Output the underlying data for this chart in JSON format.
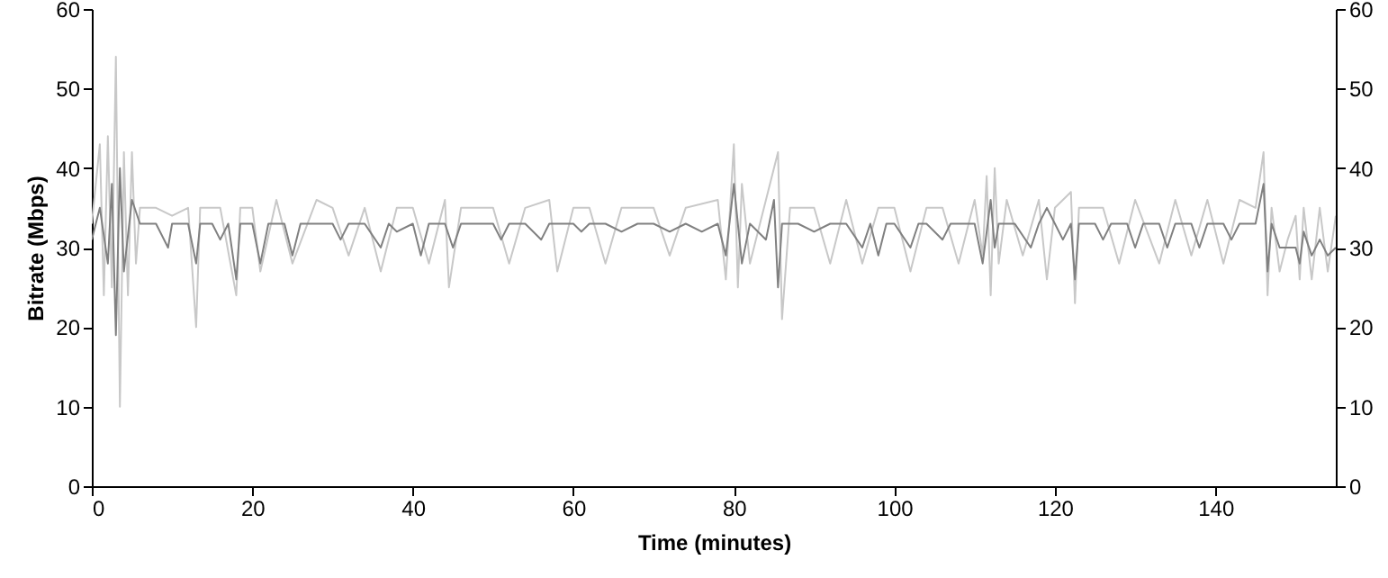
{
  "chart_data": {
    "type": "line",
    "xlabel": "Time (minutes)",
    "ylabel": "Bitrate (Mbps)",
    "xlim": [
      0,
      155
    ],
    "xticks": [
      0,
      20,
      40,
      60,
      80,
      100,
      120,
      140
    ],
    "ylim": [
      0,
      60
    ],
    "yticks": [
      0,
      10,
      20,
      30,
      40,
      50,
      60
    ],
    "y2lim": [
      0,
      60
    ],
    "y2ticks": [
      0,
      10,
      20,
      30,
      40,
      50,
      60
    ],
    "grid": false,
    "series": [
      {
        "color": "#c8c8c8",
        "x": [
          0,
          1,
          1.5,
          2,
          2.5,
          3,
          3.5,
          4,
          4.5,
          5,
          5.5,
          6,
          8,
          10,
          12,
          13,
          13.5,
          16,
          18,
          18.5,
          20,
          21,
          23,
          25,
          28,
          30,
          32,
          34,
          36,
          38,
          40,
          42,
          44,
          44.5,
          46,
          50,
          52,
          54,
          57,
          58,
          60,
          62,
          64,
          66,
          70,
          72,
          74,
          78,
          79,
          80,
          80.5,
          81,
          82,
          84,
          85.5,
          86,
          87,
          90,
          92,
          94,
          96,
          98,
          100,
          102,
          104,
          106,
          108,
          110,
          111,
          111.5,
          112,
          112.5,
          113,
          114,
          116,
          118,
          119,
          120,
          122,
          122.5,
          123,
          126,
          128,
          130,
          133,
          135,
          137,
          139,
          141,
          143,
          145,
          146,
          146.5,
          147,
          148,
          149,
          150,
          150.5,
          151,
          152,
          153,
          154,
          155
        ],
        "values": [
          33,
          43,
          24,
          44,
          25,
          54,
          10,
          42,
          24,
          42,
          28,
          35,
          35,
          34,
          35,
          20,
          35,
          35,
          24,
          35,
          35,
          27,
          36,
          28,
          36,
          35,
          29,
          35,
          27,
          35,
          35,
          28,
          36,
          25,
          35,
          35,
          28,
          35,
          36,
          27,
          35,
          35,
          28,
          35,
          35,
          29,
          35,
          36,
          26,
          43,
          25,
          38,
          28,
          36,
          42,
          21,
          35,
          35,
          28,
          36,
          28,
          35,
          35,
          27,
          35,
          35,
          28,
          36,
          29,
          39,
          24,
          40,
          28,
          36,
          29,
          36,
          26,
          35,
          37,
          23,
          35,
          35,
          28,
          36,
          28,
          36,
          29,
          36,
          28,
          36,
          35,
          42,
          24,
          35,
          27,
          31,
          34,
          26,
          35,
          26,
          35,
          27,
          34
        ]
      },
      {
        "color": "#808080",
        "x": [
          0,
          1,
          2,
          2.5,
          3,
          3.5,
          4,
          5,
          6,
          8,
          9.5,
          10,
          12,
          13,
          13.5,
          15,
          16,
          17,
          18,
          18.5,
          20,
          21,
          22,
          24,
          25,
          26,
          28,
          30,
          31,
          32,
          34,
          36,
          37,
          38,
          40,
          41,
          42,
          44,
          45,
          46,
          48,
          50,
          51,
          52,
          54,
          56,
          57,
          60,
          61,
          62,
          64,
          66,
          68,
          70,
          72,
          74,
          76,
          78,
          79,
          80,
          81,
          82,
          84,
          85,
          85.5,
          86,
          88,
          90,
          92,
          94,
          96,
          97,
          98,
          99,
          100,
          102,
          103,
          104,
          106,
          107,
          108,
          110,
          111,
          112,
          112.5,
          113,
          115,
          117,
          118,
          119,
          120,
          121,
          122,
          122.5,
          123,
          125,
          126,
          127,
          129,
          130,
          131,
          133,
          134,
          135,
          137,
          138,
          139,
          141,
          142,
          143,
          145,
          146,
          146.5,
          147,
          148,
          150,
          150.5,
          151,
          152,
          153,
          154,
          155
        ],
        "values": [
          31,
          35,
          28,
          38,
          19,
          40,
          27,
          36,
          33,
          33,
          30,
          33,
          33,
          28,
          33,
          33,
          31,
          33,
          26,
          33,
          33,
          28,
          33,
          33,
          29,
          33,
          33,
          33,
          31,
          33,
          33,
          30,
          33,
          32,
          33,
          29,
          33,
          33,
          30,
          33,
          33,
          33,
          31,
          33,
          33,
          31,
          33,
          33,
          32,
          33,
          33,
          32,
          33,
          33,
          32,
          33,
          32,
          33,
          29,
          38,
          28,
          33,
          31,
          36,
          25,
          33,
          33,
          32,
          33,
          33,
          30,
          33,
          29,
          33,
          33,
          30,
          33,
          33,
          31,
          33,
          33,
          33,
          28,
          36,
          30,
          33,
          33,
          30,
          33,
          35,
          33,
          31,
          33,
          26,
          33,
          33,
          31,
          33,
          33,
          30,
          33,
          33,
          30,
          33,
          33,
          30,
          33,
          33,
          31,
          33,
          33,
          38,
          27,
          33,
          30,
          30,
          28,
          32,
          29,
          31,
          29,
          30
        ]
      }
    ]
  }
}
